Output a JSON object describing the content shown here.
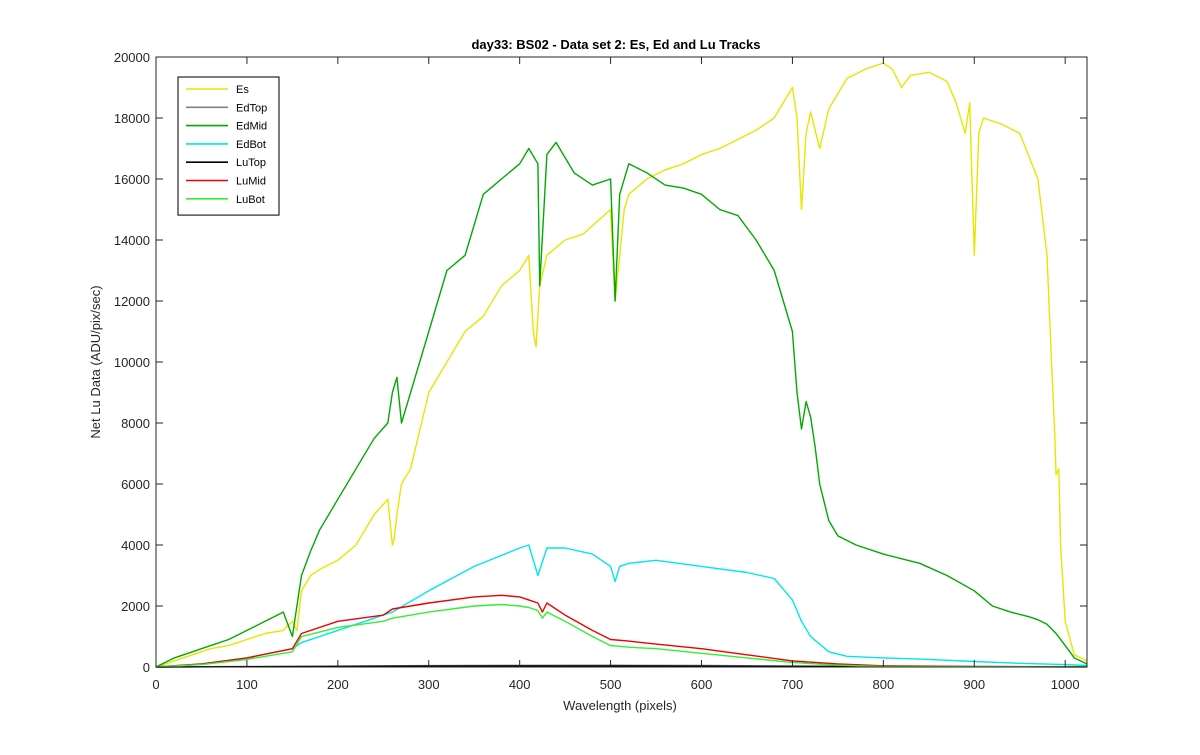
{
  "chart_data": {
    "type": "line",
    "title": "day33: BS02 - Data set 2: Es, Ed and Lu Tracks",
    "xlabel": "Wavelength (pixels)",
    "ylabel": "Net Lu Data (ADU/pix/sec)",
    "xlim": [
      0,
      1024
    ],
    "ylim": [
      0,
      20000
    ],
    "xticks": [
      0,
      100,
      200,
      300,
      400,
      500,
      600,
      700,
      800,
      900,
      1000
    ],
    "yticks": [
      0,
      2000,
      4000,
      6000,
      8000,
      10000,
      12000,
      14000,
      16000,
      18000,
      20000
    ],
    "grid": false,
    "legend_position": "top-left",
    "series": [
      {
        "name": "Es",
        "color": "#e6e600",
        "x": [
          0,
          20,
          40,
          60,
          80,
          100,
          120,
          140,
          150,
          155,
          160,
          170,
          180,
          200,
          220,
          240,
          255,
          260,
          262,
          265,
          270,
          280,
          300,
          320,
          340,
          360,
          380,
          400,
          410,
          415,
          418,
          422,
          430,
          450,
          470,
          500,
          505,
          510,
          515,
          520,
          540,
          560,
          580,
          600,
          620,
          640,
          660,
          680,
          700,
          705,
          710,
          715,
          720,
          730,
          740,
          760,
          780,
          800,
          810,
          820,
          830,
          850,
          870,
          880,
          890,
          895,
          900,
          905,
          910,
          930,
          950,
          970,
          980,
          985,
          988,
          990,
          993,
          995,
          1000,
          1010,
          1024
        ],
        "y": [
          0,
          200,
          400,
          600,
          700,
          900,
          1100,
          1200,
          1500,
          1200,
          2500,
          3000,
          3200,
          3500,
          4000,
          5000,
          5500,
          4000,
          4200,
          5000,
          6000,
          6500,
          9000,
          10000,
          11000,
          11500,
          12500,
          13000,
          13500,
          11000,
          10500,
          12500,
          13500,
          14000,
          14200,
          15000,
          12000,
          13500,
          15000,
          15500,
          16000,
          16300,
          16500,
          16800,
          17000,
          17300,
          17600,
          18000,
          19000,
          18000,
          15000,
          17500,
          18200,
          17000,
          18300,
          19300,
          19600,
          19800,
          19600,
          19000,
          19400,
          19500,
          19200,
          18500,
          17500,
          18500,
          13500,
          17500,
          18000,
          17800,
          17500,
          16000,
          13500,
          10000,
          8000,
          6300,
          6500,
          4000,
          1500,
          400,
          200
        ]
      },
      {
        "name": "EdTop",
        "color": "#808080",
        "x": [
          0,
          100,
          200,
          300,
          400,
          500,
          600,
          700,
          800,
          900,
          1024
        ],
        "y": [
          0,
          15,
          30,
          45,
          55,
          60,
          50,
          35,
          20,
          12,
          5
        ]
      },
      {
        "name": "EdMid",
        "color": "#00aa00",
        "x": [
          0,
          20,
          40,
          60,
          80,
          100,
          120,
          140,
          150,
          155,
          160,
          170,
          180,
          200,
          220,
          240,
          255,
          260,
          265,
          270,
          280,
          300,
          320,
          340,
          360,
          380,
          400,
          410,
          420,
          422,
          430,
          440,
          460,
          480,
          500,
          505,
          510,
          520,
          540,
          560,
          580,
          600,
          620,
          640,
          660,
          680,
          700,
          705,
          710,
          715,
          720,
          725,
          730,
          740,
          750,
          770,
          800,
          840,
          870,
          900,
          920,
          940,
          960,
          970,
          980,
          990,
          1000,
          1010,
          1024
        ],
        "y": [
          0,
          300,
          500,
          700,
          900,
          1200,
          1500,
          1800,
          1000,
          2000,
          3000,
          3800,
          4500,
          5500,
          6500,
          7500,
          8000,
          9000,
          9500,
          8000,
          9000,
          11000,
          13000,
          13500,
          15500,
          16000,
          16500,
          17000,
          16500,
          12500,
          16800,
          17200,
          16200,
          15800,
          16000,
          12000,
          15500,
          16500,
          16200,
          15800,
          15700,
          15500,
          15000,
          14800,
          14000,
          13000,
          11000,
          9000,
          7800,
          8700,
          8200,
          7200,
          6000,
          4800,
          4300,
          4000,
          3700,
          3400,
          3000,
          2500,
          2000,
          1800,
          1650,
          1550,
          1400,
          1100,
          700,
          300,
          100
        ]
      },
      {
        "name": "EdBot",
        "color": "#00e5ee",
        "x": [
          0,
          50,
          100,
          150,
          160,
          200,
          250,
          260,
          300,
          350,
          400,
          410,
          420,
          430,
          450,
          480,
          500,
          505,
          510,
          520,
          550,
          600,
          650,
          680,
          700,
          710,
          720,
          740,
          760,
          800,
          850,
          900,
          950,
          1000,
          1024
        ],
        "y": [
          0,
          100,
          300,
          600,
          800,
          1200,
          1700,
          1800,
          2500,
          3300,
          3900,
          4000,
          3000,
          3900,
          3900,
          3700,
          3300,
          2800,
          3300,
          3400,
          3500,
          3300,
          3100,
          2900,
          2200,
          1500,
          1000,
          500,
          350,
          300,
          250,
          180,
          120,
          80,
          50
        ]
      },
      {
        "name": "LuTop",
        "color": "#000000",
        "x": [
          0,
          100,
          200,
          300,
          400,
          500,
          600,
          700,
          800,
          900,
          1024
        ],
        "y": [
          0,
          10,
          20,
          30,
          35,
          35,
          30,
          20,
          12,
          8,
          4
        ]
      },
      {
        "name": "LuMid",
        "color": "#ee0000",
        "x": [
          0,
          50,
          100,
          150,
          160,
          200,
          250,
          260,
          300,
          350,
          380,
          400,
          410,
          420,
          425,
          430,
          450,
          480,
          500,
          520,
          550,
          600,
          650,
          700,
          750,
          800,
          900,
          1024
        ],
        "y": [
          0,
          100,
          300,
          600,
          1100,
          1500,
          1700,
          1900,
          2100,
          2300,
          2350,
          2300,
          2200,
          2100,
          1800,
          2100,
          1700,
          1200,
          900,
          850,
          750,
          600,
          400,
          200,
          100,
          40,
          15,
          5
        ]
      },
      {
        "name": "LuBot",
        "color": "#33ee33",
        "x": [
          0,
          50,
          100,
          150,
          160,
          200,
          250,
          260,
          300,
          350,
          380,
          400,
          410,
          420,
          425,
          430,
          450,
          480,
          500,
          520,
          550,
          600,
          650,
          700,
          750,
          800,
          900,
          1024
        ],
        "y": [
          0,
          80,
          250,
          500,
          1000,
          1300,
          1500,
          1600,
          1800,
          2000,
          2050,
          2000,
          1950,
          1850,
          1600,
          1800,
          1500,
          1000,
          700,
          650,
          600,
          450,
          300,
          150,
          60,
          20,
          10,
          4
        ]
      }
    ]
  }
}
